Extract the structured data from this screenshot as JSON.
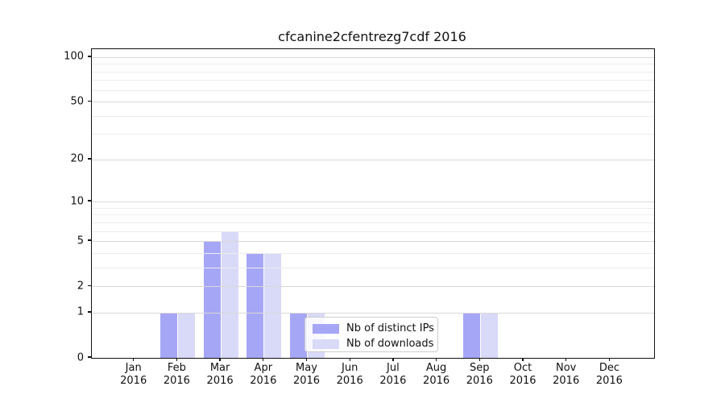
{
  "title": "cfcanine2cfentrezg7cdf 2016",
  "legend": {
    "items": [
      {
        "label": "Nb of distinct IPs",
        "color": "#a6a6f6"
      },
      {
        "label": "Nb of downloads",
        "color": "#d9d9f8"
      }
    ]
  },
  "y_axis": {
    "tick_values": [
      100,
      50,
      20,
      10,
      5,
      2,
      1,
      0
    ],
    "tick_labels": [
      "100",
      "50",
      "20",
      "10",
      "5",
      "2",
      "1",
      "0"
    ]
  },
  "x_axis": {
    "year": "2016",
    "months": [
      "Jan",
      "Feb",
      "Mar",
      "Apr",
      "May",
      "Jun",
      "Jul",
      "Aug",
      "Sep",
      "Oct",
      "Nov",
      "Dec"
    ]
  },
  "colors": {
    "distinct_ips": "#a6a6f6",
    "downloads": "#d9d9f8",
    "grid_major": "#d9d9d9",
    "grid_minor": "#ececec",
    "axis": "#111111"
  },
  "chart_data": {
    "type": "bar",
    "title": "cfcanine2cfentrezg7cdf 2016",
    "categories": [
      "Jan 2016",
      "Feb 2016",
      "Mar 2016",
      "Apr 2016",
      "May 2016",
      "Jun 2016",
      "Jul 2016",
      "Aug 2016",
      "Sep 2016",
      "Oct 2016",
      "Nov 2016",
      "Dec 2016"
    ],
    "series": [
      {
        "name": "Nb of distinct IPs",
        "values": [
          0,
          1,
          5,
          4,
          1,
          0,
          0,
          0,
          1,
          0,
          0,
          0
        ]
      },
      {
        "name": "Nb of downloads",
        "values": [
          0,
          1,
          6,
          4,
          1,
          0,
          0,
          0,
          1,
          0,
          0,
          0
        ]
      }
    ],
    "xlabel": "",
    "ylabel": "",
    "y_scale": "log1p",
    "y_ticks": [
      0,
      1,
      2,
      5,
      10,
      20,
      50,
      100
    ],
    "minor_gridlines": [
      3,
      4,
      6,
      7,
      8,
      9,
      30,
      40,
      60,
      70,
      80,
      90
    ],
    "ylim": [
      0,
      113
    ],
    "grid": true,
    "legend_position": "lower-center"
  }
}
